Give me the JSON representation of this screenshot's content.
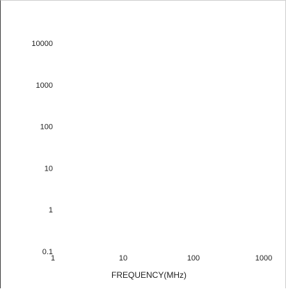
{
  "chart_data": {
    "type": "line",
    "title": "",
    "xlabel": "FREQUENCY(MHz)",
    "ylabel": "",
    "xscale": "log",
    "yscale": "log",
    "xlim": [
      1,
      1000
    ],
    "ylim": [
      0.1,
      10000
    ],
    "grid": false,
    "legend": "none",
    "xticks": [
      {
        "value": 1,
        "label": "1"
      },
      {
        "value": 10,
        "label": "10"
      },
      {
        "value": 100,
        "label": "100"
      },
      {
        "value": 1000,
        "label": "1000"
      }
    ],
    "yticks": [
      {
        "value": 0.1,
        "label": "0.1"
      },
      {
        "value": 1,
        "label": "1"
      },
      {
        "value": 10,
        "label": "10"
      },
      {
        "value": 100,
        "label": "100"
      },
      {
        "value": 1000,
        "label": "1000"
      },
      {
        "value": 10000,
        "label": "10000"
      }
    ],
    "series": []
  }
}
